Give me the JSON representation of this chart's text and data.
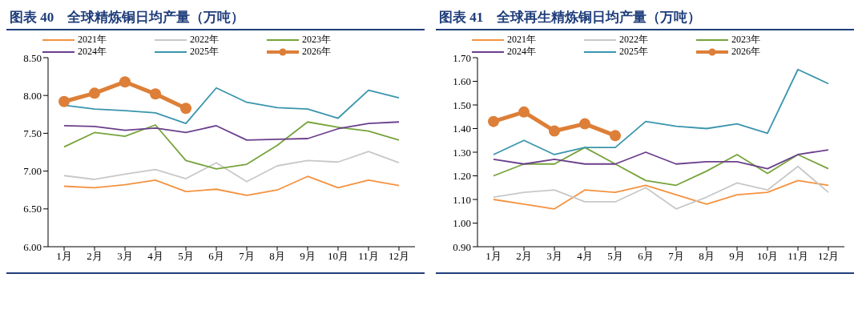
{
  "chart_data": [
    {
      "type": "line",
      "title": "图表 40　全球精炼铜日均产量（万吨）",
      "categories": [
        "1月",
        "2月",
        "3月",
        "4月",
        "5月",
        "6月",
        "7月",
        "8月",
        "9月",
        "10月",
        "11月",
        "12月"
      ],
      "ylim": [
        6.0,
        8.5
      ],
      "yticks": [
        {
          "value": 6,
          "label": "6.00"
        },
        {
          "value": 6.5,
          "label": "6.50"
        },
        {
          "value": 7,
          "label": "7.00"
        },
        {
          "value": 7.5,
          "label": "7.50"
        },
        {
          "value": 8,
          "label": "8.00"
        },
        {
          "value": 8.5,
          "label": "8.50"
        }
      ],
      "grid": false,
      "legend": "top",
      "series": [
        {
          "name": "2021年",
          "color": "#f4923f",
          "marker": "none",
          "values": [
            6.8,
            6.78,
            6.82,
            6.88,
            6.73,
            6.76,
            6.68,
            6.75,
            6.93,
            6.78,
            6.88,
            6.81
          ]
        },
        {
          "name": "2022年",
          "color": "#c8c8c8",
          "marker": "none",
          "values": [
            6.94,
            6.89,
            6.96,
            7.02,
            6.9,
            7.11,
            6.86,
            7.07,
            7.14,
            7.12,
            7.26,
            7.11
          ]
        },
        {
          "name": "2023年",
          "color": "#77a33c",
          "marker": "none",
          "values": [
            7.32,
            7.51,
            7.46,
            7.61,
            7.14,
            7.03,
            7.09,
            7.34,
            7.65,
            7.58,
            7.53,
            7.41
          ]
        },
        {
          "name": "2024年",
          "color": "#6b3f8c",
          "marker": "none",
          "values": [
            7.6,
            7.59,
            7.54,
            7.57,
            7.51,
            7.6,
            7.41,
            7.42,
            7.43,
            7.56,
            7.63,
            7.65
          ]
        },
        {
          "name": "2025年",
          "color": "#3a95ad",
          "marker": "none",
          "values": [
            7.87,
            7.82,
            7.8,
            7.77,
            7.63,
            8.1,
            7.91,
            7.84,
            7.82,
            7.7,
            8.07,
            7.97
          ]
        },
        {
          "name": "2026年",
          "color": "#dd7f38",
          "marker": "circle",
          "values": [
            7.92,
            8.03,
            8.18,
            8.02,
            7.83,
            null,
            null,
            null,
            null,
            null,
            null,
            null
          ]
        }
      ]
    },
    {
      "type": "line",
      "title": "图表 41　全球再生精炼铜日均产量（万吨）",
      "categories": [
        "1月",
        "2月",
        "3月",
        "4月",
        "5月",
        "6月",
        "7月",
        "8月",
        "9月",
        "10月",
        "11月",
        "12月"
      ],
      "ylim": [
        0.9,
        1.7
      ],
      "yticks": [
        {
          "value": 0.9,
          "label": "0.90"
        },
        {
          "value": 1,
          "label": "1.00"
        },
        {
          "value": 1.1,
          "label": "1.10"
        },
        {
          "value": 1.2,
          "label": "1.20"
        },
        {
          "value": 1.3,
          "label": "1.30"
        },
        {
          "value": 1.4,
          "label": "1.40"
        },
        {
          "value": 1.5,
          "label": "1.50"
        },
        {
          "value": 1.6,
          "label": "1.60"
        },
        {
          "value": 1.7,
          "label": "1.70"
        }
      ],
      "grid": false,
      "legend": "top",
      "series": [
        {
          "name": "2021年",
          "color": "#f4923f",
          "marker": "none",
          "values": [
            1.1,
            1.08,
            1.06,
            1.14,
            1.13,
            1.16,
            1.12,
            1.08,
            1.12,
            1.13,
            1.18,
            1.16
          ]
        },
        {
          "name": "2022年",
          "color": "#c8c8c8",
          "marker": "none",
          "values": [
            1.11,
            1.13,
            1.14,
            1.09,
            1.09,
            1.15,
            1.06,
            1.11,
            1.17,
            1.14,
            1.24,
            1.13
          ]
        },
        {
          "name": "2023年",
          "color": "#77a33c",
          "marker": "none",
          "values": [
            1.2,
            1.25,
            1.25,
            1.32,
            1.25,
            1.18,
            1.16,
            1.22,
            1.29,
            1.21,
            1.29,
            1.23
          ]
        },
        {
          "name": "2024年",
          "color": "#6b3f8c",
          "marker": "none",
          "values": [
            1.27,
            1.25,
            1.27,
            1.25,
            1.25,
            1.3,
            1.25,
            1.26,
            1.26,
            1.23,
            1.29,
            1.31
          ]
        },
        {
          "name": "2025年",
          "color": "#3a95ad",
          "marker": "none",
          "values": [
            1.29,
            1.35,
            1.29,
            1.32,
            1.32,
            1.43,
            1.41,
            1.4,
            1.42,
            1.38,
            1.65,
            1.59
          ]
        },
        {
          "name": "2026年",
          "color": "#dd7f38",
          "marker": "circle",
          "values": [
            1.43,
            1.47,
            1.39,
            1.42,
            1.37,
            null,
            null,
            null,
            null,
            null,
            null,
            null
          ]
        }
      ]
    }
  ]
}
